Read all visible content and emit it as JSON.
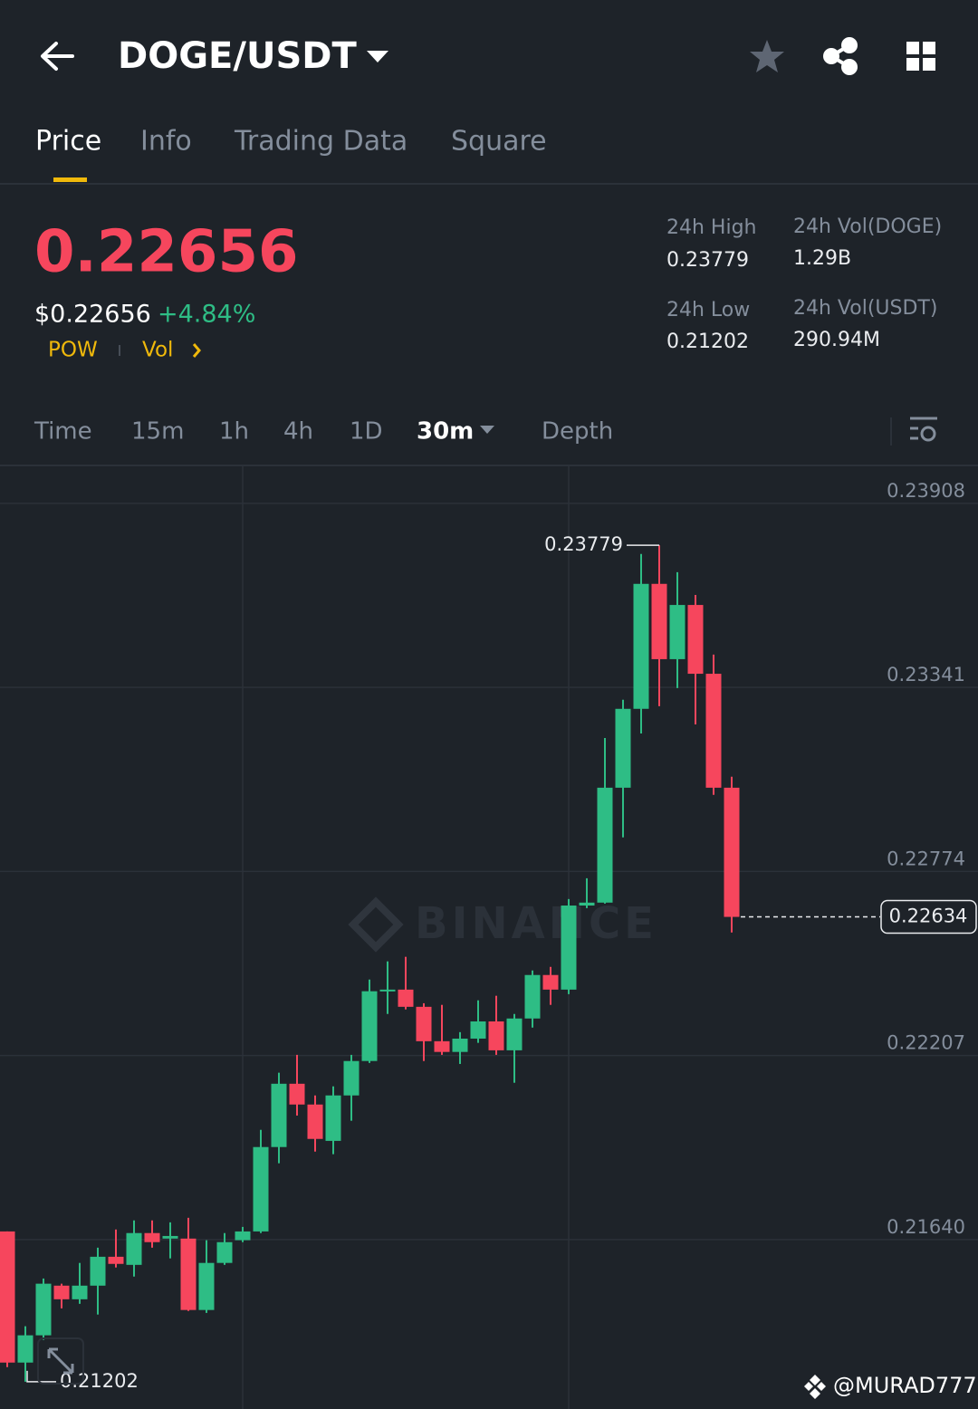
{
  "header": {
    "title": "DOGE/USDT"
  },
  "tabs": [
    "Price",
    "Info",
    "Trading Data",
    "Square"
  ],
  "ticker": {
    "price": "0.22656",
    "usd_price": "$0.22656",
    "change": "+4.84%",
    "tags": [
      "POW",
      "Vol"
    ]
  },
  "stats": [
    {
      "label": "24h High",
      "value": "0.23779"
    },
    {
      "label": "24h Vol(DOGE)",
      "value": "1.29B"
    },
    {
      "label": "24h Low",
      "value": "0.21202"
    },
    {
      "label": "24h Vol(USDT)",
      "value": "290.94M"
    }
  ],
  "intervals": [
    "Time",
    "15m",
    "1h",
    "4h",
    "1D",
    "30m",
    "Depth"
  ],
  "chart_data": {
    "type": "candlestick",
    "open": [
      0.21665,
      0.21261,
      0.21345,
      0.21498,
      0.21456,
      0.21498,
      0.21587,
      0.21562,
      0.2166,
      0.21643,
      0.21643,
      0.21423,
      0.21568,
      0.21638,
      0.21665,
      0.21925,
      0.2212,
      0.22056,
      0.21944,
      0.22084,
      0.2219,
      0.22405,
      0.2241,
      0.22357,
      0.22251,
      0.22218,
      0.22259,
      0.22312,
      0.22223,
      0.22321,
      0.22455,
      0.2241,
      0.22669,
      0.22678,
      0.23032,
      0.23275,
      0.2366,
      0.23428,
      0.23595,
      0.23383,
      0.23032
    ],
    "high": [
      0.21665,
      0.21373,
      0.2152,
      0.21504,
      0.21568,
      0.21615,
      0.21671,
      0.21699,
      0.21699,
      0.21693,
      0.21707,
      0.21638,
      0.2166,
      0.21679,
      0.21978,
      0.22154,
      0.22209,
      0.22084,
      0.22112,
      0.22209,
      0.22441,
      0.22497,
      0.22511,
      0.22368,
      0.22363,
      0.22279,
      0.22377,
      0.22391,
      0.22335,
      0.22469,
      0.2248,
      0.22689,
      0.22753,
      0.23185,
      0.23303,
      0.23752,
      0.23779,
      0.23696,
      0.23626,
      0.23442,
      0.23066
    ],
    "low": [
      0.21247,
      0.21202,
      0.21331,
      0.21428,
      0.21442,
      0.21409,
      0.21554,
      0.21526,
      0.21615,
      0.21582,
      0.2142,
      0.21414,
      0.21562,
      0.21632,
      0.2166,
      0.21875,
      0.22022,
      0.21911,
      0.21903,
      0.22006,
      0.22184,
      0.22335,
      0.22349,
      0.2219,
      0.22209,
      0.22181,
      0.22246,
      0.22209,
      0.22123,
      0.22293,
      0.22363,
      0.22396,
      0.22661,
      0.22675,
      0.22879,
      0.23199,
      0.23283,
      0.23339,
      0.23227,
      0.2301,
      0.22586
    ],
    "close": [
      0.21261,
      0.21345,
      0.21504,
      0.21456,
      0.21498,
      0.21587,
      0.21565,
      0.2166,
      0.21632,
      0.21651,
      0.21423,
      0.21568,
      0.21632,
      0.21665,
      0.21925,
      0.2212,
      0.22056,
      0.2195,
      0.22084,
      0.2219,
      0.22405,
      0.2241,
      0.22357,
      0.22251,
      0.22218,
      0.22259,
      0.22312,
      0.22223,
      0.22321,
      0.22455,
      0.2241,
      0.22669,
      0.22678,
      0.23032,
      0.23275,
      0.2366,
      0.23428,
      0.23595,
      0.23383,
      0.23032,
      0.22634
    ],
    "up_color": "#2ebd85",
    "down_color": "#f6465d",
    "ylim": [
      0.21118,
      0.24022
    ],
    "yticks": [
      0.23908,
      0.23341,
      0.22774,
      0.22207,
      {
        "value": 0.2164,
        "label": "0.21640"
      }
    ],
    "grid": true,
    "high_label": 0.23779,
    "low_label": 0.21202,
    "last_price": 0.22634
  },
  "watermark": "BINANCE",
  "credit": "@MURAD777"
}
